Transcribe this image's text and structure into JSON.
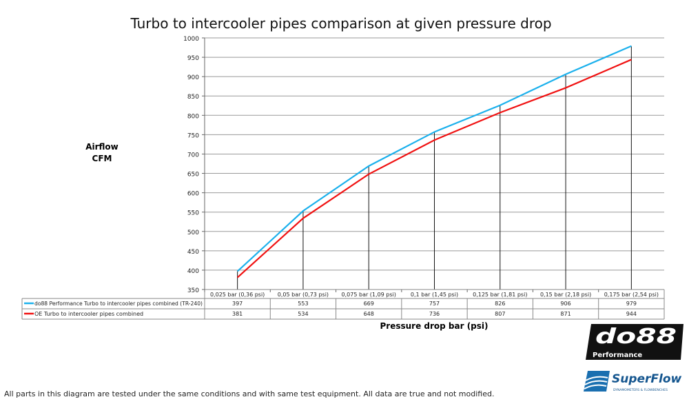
{
  "chart_data": {
    "type": "line",
    "title": "Turbo to intercooler pipes comparison at given pressure drop",
    "ylabel": [
      "Airflow",
      "CFM"
    ],
    "xlabel": "Pressure drop bar (psi)",
    "ylim": [
      350,
      1000
    ],
    "yticks": [
      350,
      400,
      450,
      500,
      550,
      600,
      650,
      700,
      750,
      800,
      850,
      900,
      950,
      1000
    ],
    "grid": true,
    "legend": "data-table-below",
    "categories": [
      "0,025 bar (0,36 psi)",
      "0,05 bar (0,73 psi)",
      "0,075 bar (1,09 psi)",
      "0,1 bar (1,45 psi)",
      "0,125 bar (1,81 psi)",
      "0,15 bar (2,18 psi)",
      "0,175 bar (2,54 psi)"
    ],
    "series": [
      {
        "name": "do88 Performance Turbo to intercooler pipes combined (TR-240)",
        "color": "#1ab0ec",
        "values": [
          397,
          553,
          669,
          757,
          826,
          906,
          979
        ]
      },
      {
        "name": "OE Turbo to intercooler pipes combined",
        "color": "#f01010",
        "values": [
          381,
          534,
          648,
          736,
          807,
          871,
          944
        ]
      }
    ]
  },
  "footer": "All parts in this diagram are tested under the same conditions and with same test equipment. All data are true and not modified.",
  "logos": {
    "do88": "do88",
    "do88_sub": "Performance",
    "superflow": "SuperFlow",
    "superflow_sub": "DYNAMOMETERS & FLOWBENCHES"
  }
}
